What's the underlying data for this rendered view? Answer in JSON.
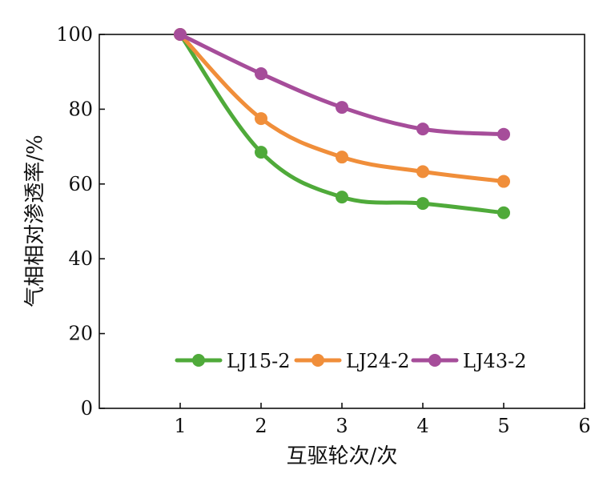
{
  "chart_data": {
    "type": "line",
    "title": "",
    "xlabel": "互驱轮次/次",
    "ylabel": "气相相对渗透率/%",
    "xlim": [
      0,
      6
    ],
    "ylim": [
      0,
      100
    ],
    "x_ticks": [
      1,
      2,
      3,
      4,
      5,
      6
    ],
    "y_ticks": [
      0,
      20,
      40,
      60,
      80,
      100
    ],
    "grid": false,
    "legend_position": "bottom-center",
    "x": [
      1,
      2,
      3,
      4,
      5
    ],
    "series": [
      {
        "name": "LJ15-2",
        "color": "#4FAA3A",
        "values": [
          100,
          68.5,
          56.5,
          54.8,
          52.3
        ]
      },
      {
        "name": "LJ24-2",
        "color": "#F08E3A",
        "values": [
          100,
          77.5,
          67.2,
          63.3,
          60.7
        ]
      },
      {
        "name": "LJ43-2",
        "color": "#A64D9A",
        "values": [
          100,
          89.5,
          80.5,
          74.7,
          73.3
        ]
      }
    ]
  }
}
